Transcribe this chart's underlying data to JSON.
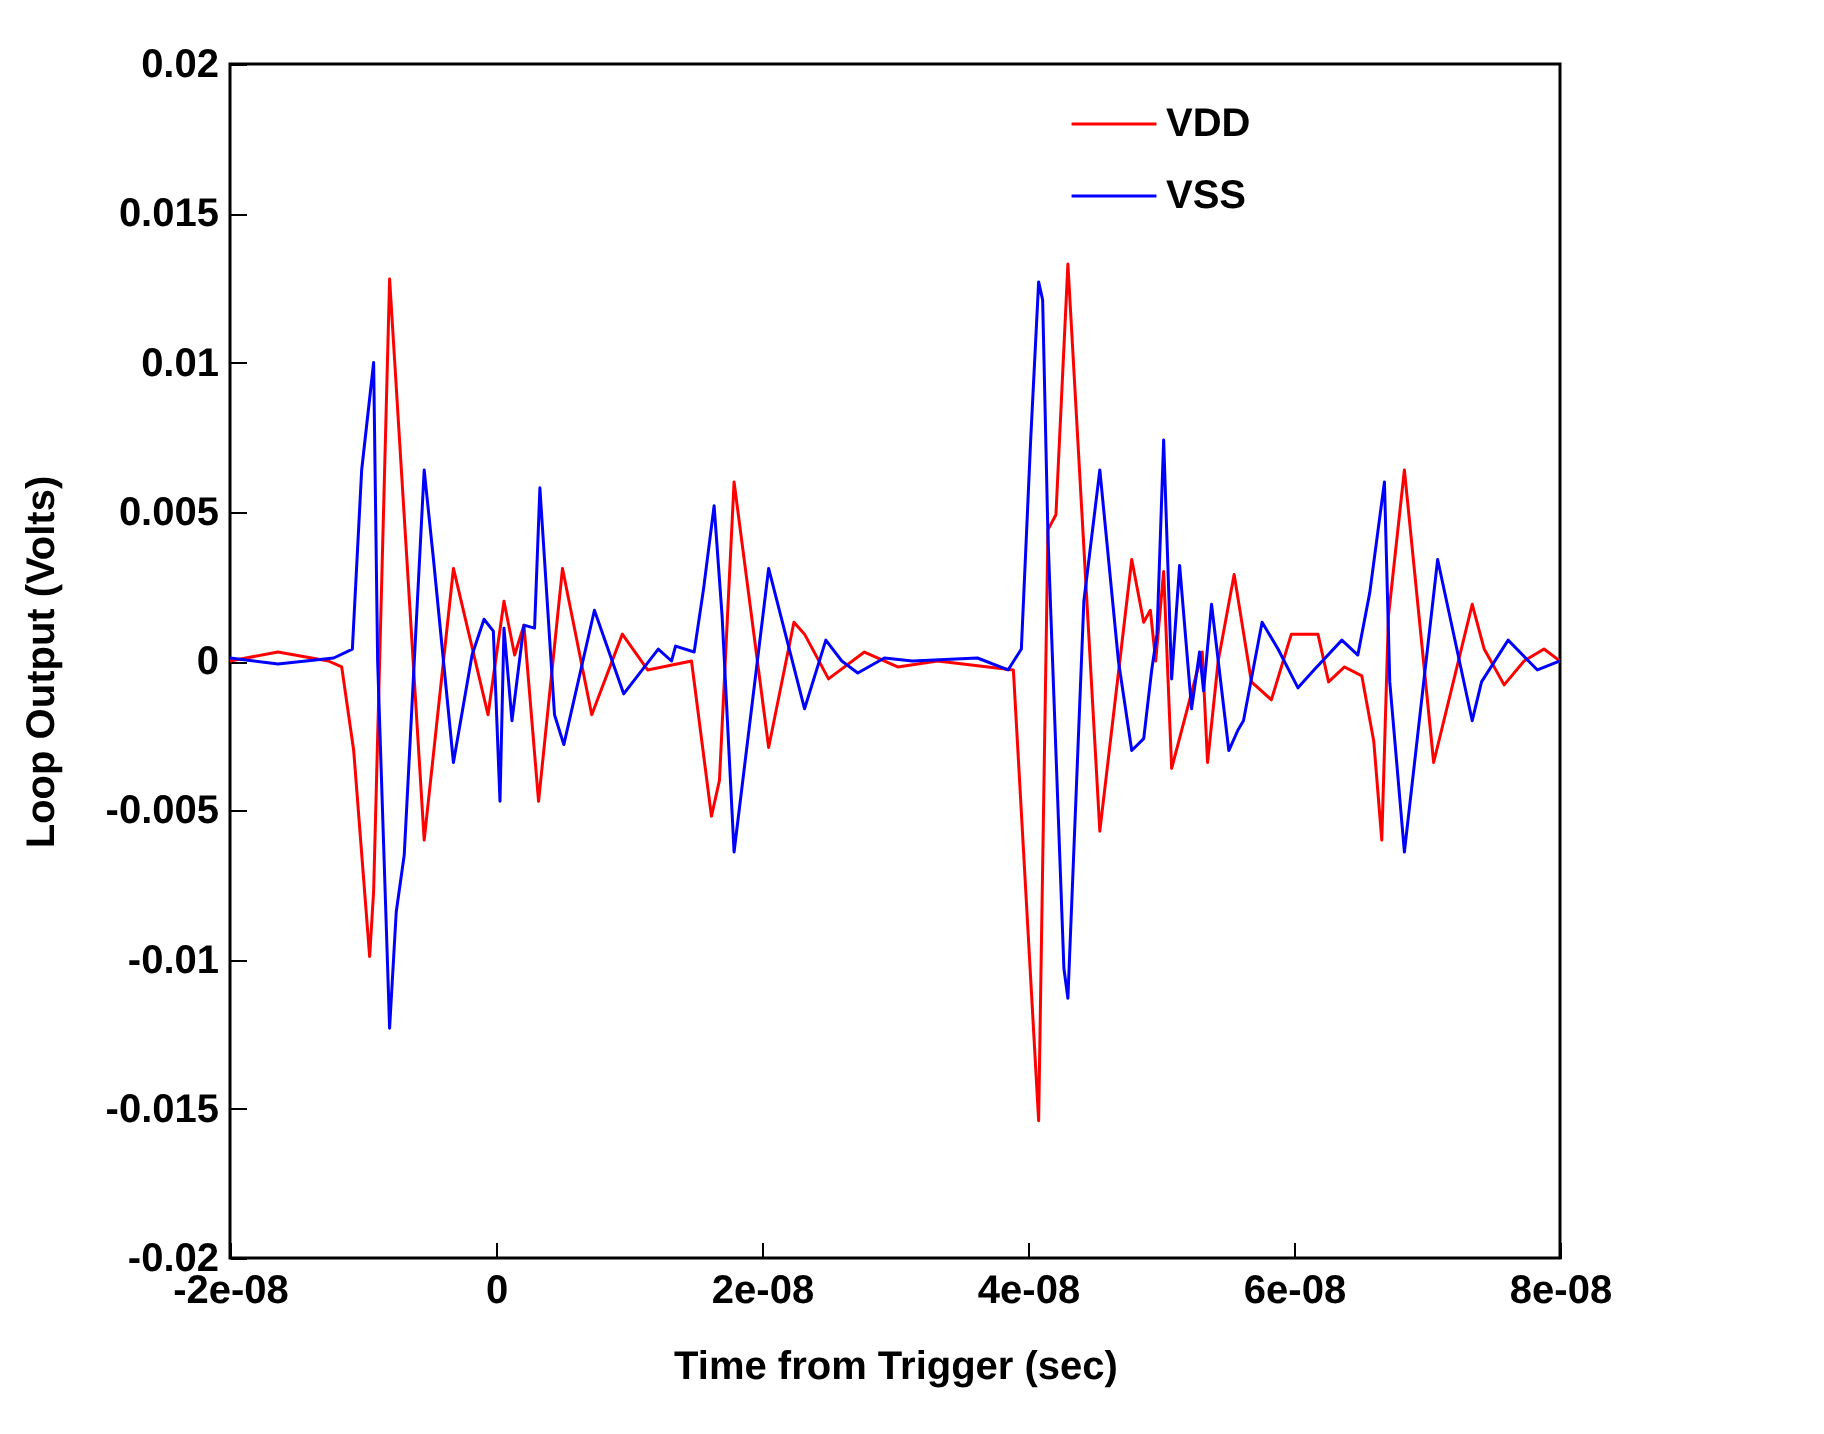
{
  "chart_data": {
    "type": "line",
    "xlabel": "Time from Trigger (sec)",
    "ylabel": "Loop Output (Volts)",
    "xlim": [
      -2e-08,
      8e-08
    ],
    "ylim": [
      -0.02,
      0.02
    ],
    "xticks": [
      {
        "value": -2e-08,
        "label": "-2e-08"
      },
      0,
      {
        "value": 2e-08,
        "label": "2e-08"
      },
      {
        "value": 4e-08,
        "label": "4e-08"
      },
      {
        "value": 6e-08,
        "label": "6e-08"
      },
      {
        "value": 8e-08,
        "label": "8e-08"
      }
    ],
    "yticks": [
      -0.02,
      -0.015,
      -0.01,
      -0.005,
      0,
      0.005,
      0.01,
      0.015,
      0.02
    ],
    "grid": false,
    "legend": "top right",
    "line_style": "solid",
    "marker": "none",
    "series": [
      {
        "name": "VDD",
        "color": "#ff0000",
        "x": [
          -2e-08,
          -1.64e-08,
          -1.26e-08,
          -1.16e-08,
          -1.07e-08,
          -9.5e-09,
          -9.2e-09,
          -8e-09,
          -5.4e-09,
          -3.2e-09,
          -6e-10,
          6e-10,
          1.4e-09,
          2.1e-09,
          3.2e-09,
          5e-09,
          7.2e-09,
          9.5e-09,
          1.14e-08,
          1.47e-08,
          1.62e-08,
          1.68e-08,
          1.79e-08,
          2.05e-08,
          2.24e-08,
          2.32e-08,
          2.5e-08,
          2.77e-08,
          3.02e-08,
          3.32e-08,
          3.89e-08,
          4.08e-08,
          4.15e-08,
          4.21e-08,
          4.3e-08,
          4.54e-08,
          4.78e-08,
          4.87e-08,
          4.92e-08,
          4.96e-08,
          5.02e-08,
          5.08e-08,
          5.31e-08,
          5.35e-08,
          5.43e-08,
          5.55e-08,
          5.68e-08,
          5.83e-08,
          5.98e-08,
          6.18e-08,
          6.26e-08,
          6.38e-08,
          6.51e-08,
          6.6e-08,
          6.66e-08,
          6.71e-08,
          6.83e-08,
          7.05e-08,
          7.34e-08,
          7.43e-08,
          7.58e-08,
          7.73e-08,
          7.88e-08,
          8e-08
        ],
        "values": [
          0,
          0.0003,
          0,
          -0.0002,
          -0.003,
          -0.0099,
          -0.0077,
          0.0128,
          -0.006,
          0.0031,
          -0.0018,
          0.002,
          0.0002,
          0.0012,
          -0.0047,
          0.0031,
          -0.0018,
          0.0009,
          -0.0003,
          0,
          -0.0052,
          -0.004,
          0.006,
          -0.0029,
          0.0013,
          0.0009,
          -0.0006,
          0.0003,
          -0.0002,
          0,
          -0.0003,
          -0.0154,
          0.0044,
          0.0049,
          0.0133,
          -0.0057,
          0.0034,
          0.0013,
          0.0017,
          0,
          0.003,
          -0.0036,
          0.0003,
          -0.0034,
          0,
          0.0029,
          -0.0007,
          -0.0013,
          0.0009,
          0.0009,
          -0.0007,
          -0.0002,
          -0.0005,
          -0.0027,
          -0.006,
          0.0015,
          0.0064,
          -0.0034,
          0.0019,
          0.0004,
          -0.0008,
          0,
          0.0004,
          0
        ]
      },
      {
        "name": "VSS",
        "color": "#0000ff",
        "x": [
          -2e-08,
          -1.64e-08,
          -1.22e-08,
          -1.08e-08,
          -1.01e-08,
          -9.2e-09,
          -8.9e-09,
          -8e-09,
          -7.5e-09,
          -6.9e-09,
          -5.4e-09,
          -4.7e-09,
          -3.2e-09,
          -1.8e-09,
          -9e-10,
          -2e-10,
          3e-10,
          6e-10,
          1.2e-09,
          2.1e-09,
          2.9e-09,
          3.3e-09,
          4.4e-09,
          5.1e-09,
          7.4e-09,
          9.6e-09,
          1.22e-08,
          1.32e-08,
          1.35e-08,
          1.49e-08,
          1.56e-08,
          1.64e-08,
          1.7e-08,
          1.79e-08,
          2.05e-08,
          2.32e-08,
          2.48e-08,
          2.6e-08,
          2.72e-08,
          2.92e-08,
          3.13e-08,
          3.62e-08,
          3.85e-08,
          3.95e-08,
          4.02e-08,
          4.08e-08,
          4.11e-08,
          4.15e-08,
          4.27e-08,
          4.3e-08,
          4.42e-08,
          4.54e-08,
          4.68e-08,
          4.78e-08,
          4.87e-08,
          4.93e-08,
          4.97e-08,
          5.02e-08,
          5.08e-08,
          5.14e-08,
          5.23e-08,
          5.29e-08,
          5.32e-08,
          5.38e-08,
          5.51e-08,
          5.58e-08,
          5.62e-08,
          5.76e-08,
          5.88e-08,
          6.03e-08,
          6.15e-08,
          6.36e-08,
          6.48e-08,
          6.57e-08,
          6.68e-08,
          6.72e-08,
          6.83e-08,
          7.08e-08,
          7.34e-08,
          7.41e-08,
          7.61e-08,
          7.83e-08,
          8e-08
        ],
        "values": [
          0.0001,
          -0.0001,
          0.0001,
          0.0004,
          0.0064,
          0.01,
          0,
          -0.0123,
          -0.0084,
          -0.0065,
          0.0064,
          0.0034,
          -0.0034,
          0.0002,
          0.0014,
          0.001,
          -0.0047,
          0.0011,
          -0.002,
          0.0012,
          0.0011,
          0.0058,
          -0.0018,
          -0.0028,
          0.0017,
          -0.0011,
          0.0004,
          0,
          0.0005,
          0.0003,
          0.0024,
          0.0052,
          0.0015,
          -0.0064,
          0.0031,
          -0.0016,
          0.0007,
          0,
          -0.0004,
          0.0001,
          0,
          0.0001,
          -0.0003,
          0.0004,
          0.0074,
          0.0127,
          0.0121,
          0.0042,
          -0.0103,
          -0.0113,
          0.002,
          0.0064,
          0,
          -0.003,
          -0.0026,
          -0.0003,
          0.0009,
          0.0074,
          -0.0006,
          0.0032,
          -0.0016,
          0.0003,
          -0.001,
          0.0019,
          -0.003,
          -0.0023,
          -0.002,
          0.0013,
          0.0004,
          -0.0009,
          -0.0003,
          0.0007,
          0.0002,
          0.0023,
          0.006,
          -0.0007,
          -0.0064,
          0.0034,
          -0.002,
          -0.0007,
          0.0007,
          -0.0003,
          0
        ]
      }
    ]
  }
}
